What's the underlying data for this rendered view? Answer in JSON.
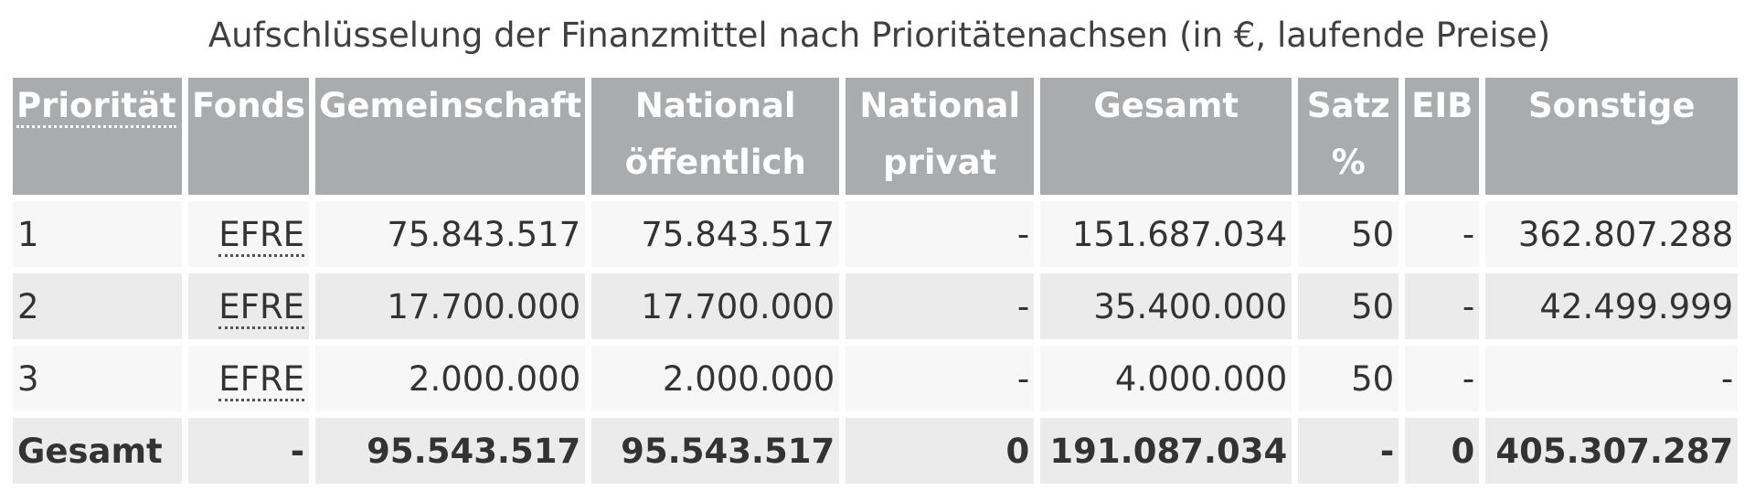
{
  "caption": "Aufschlüsselung der Finanzmittel nach Prioritätenachsen (in €, laufende Preise)",
  "headers": {
    "prioritaet": "Priorität",
    "fonds": "Fonds",
    "gemeinschaft": "Gemeinschaft",
    "national_oeffentlich_1": "National",
    "national_oeffentlich_2": "öffentlich",
    "national_privat_1": "National",
    "national_privat_2": "privat",
    "gesamt": "Gesamt",
    "satz_1": "Satz",
    "satz_2": "%",
    "eib": "EIB",
    "sonstige": "Sonstige"
  },
  "rows": [
    {
      "prioritaet": "1",
      "fonds": "EFRE",
      "gemeinschaft": "75.843.517",
      "national_oeffentlich": "75.843.517",
      "national_privat": "-",
      "gesamt": "151.687.034",
      "satz": "50",
      "eib": "-",
      "sonstige": "362.807.288"
    },
    {
      "prioritaet": "2",
      "fonds": "EFRE",
      "gemeinschaft": "17.700.000",
      "national_oeffentlich": "17.700.000",
      "national_privat": "-",
      "gesamt": "35.400.000",
      "satz": "50",
      "eib": "-",
      "sonstige": "42.499.999"
    },
    {
      "prioritaet": "3",
      "fonds": "EFRE",
      "gemeinschaft": "2.000.000",
      "national_oeffentlich": "2.000.000",
      "national_privat": "-",
      "gesamt": "4.000.000",
      "satz": "50",
      "eib": "-",
      "sonstige": "-"
    }
  ],
  "total": {
    "label": "Gesamt",
    "fonds": "-",
    "gemeinschaft": "95.543.517",
    "national_oeffentlich": "95.543.517",
    "national_privat": "0",
    "gesamt": "191.087.034",
    "satz": "-",
    "eib": "0",
    "sonstige": "405.307.287"
  },
  "colors": {
    "header_bg": "#a9abad",
    "row_light": "#f7f7f7",
    "row_dark": "#ebebeb"
  }
}
